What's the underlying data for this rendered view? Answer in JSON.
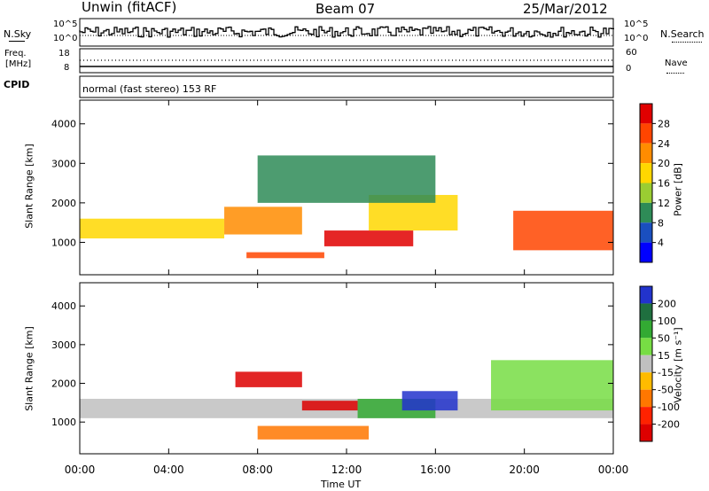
{
  "header": {
    "station": "Unwin (fitACF)",
    "beam": "Beam 07",
    "date": "25/Mar/2012"
  },
  "panels": {
    "nsky_label": "N.Sky",
    "nsearch_label": "N.Search",
    "freq_label_1": "Freq.",
    "freq_label_2": "[MHz]",
    "nave_label": "Nave",
    "cpid_label": "CPID",
    "cpid_value": "normal (fast stereo) 153 RF",
    "noise_ticks_left": [
      "10^5",
      "10^0"
    ],
    "noise_ticks_right": [
      "10^5",
      "10^0"
    ],
    "freq_ticks": [
      "18",
      "8"
    ],
    "nave_ticks": [
      "60",
      "0"
    ]
  },
  "colorbars": {
    "power": {
      "label": "Power [dB]",
      "ticks": [
        "28",
        "24",
        "20",
        "16",
        "12",
        "8",
        "4"
      ],
      "colors": [
        "#e00000",
        "#ff4500",
        "#ff8c00",
        "#ffd700",
        "#9acd32",
        "#2e8b57",
        "#1a4fbf",
        "#0000ff"
      ]
    },
    "velocity": {
      "label": "Velocity [m s⁻¹]",
      "ticks": [
        "200",
        "100",
        "50",
        "15",
        "-15",
        "-50",
        "-100",
        "-200"
      ],
      "colors": [
        "#2233cc",
        "#1f6f3f",
        "#33aa33",
        "#77dd44",
        "#c0c0c0",
        "#ffbb00",
        "#ff7700",
        "#ff2200",
        "#dd0000"
      ]
    }
  },
  "chart_data": [
    {
      "type": "heatmap",
      "title": "Power",
      "ylabel": "Slant Range [km]",
      "xlabel": "Time UT",
      "ylim": [
        180,
        4600
      ],
      "yticks": [
        "1000",
        "2000",
        "3000",
        "4000"
      ],
      "x_ticks": [
        "00:00",
        "04:00",
        "08:00",
        "12:00",
        "16:00",
        "20:00",
        "00:00"
      ],
      "colorbar": "Power [dB]",
      "regions": [
        {
          "t0": 0.0,
          "t1": 6.5,
          "r0": 1100,
          "r1": 1600,
          "level": 16
        },
        {
          "t0": 6.5,
          "t1": 10.0,
          "r0": 1200,
          "r1": 1900,
          "level": 20
        },
        {
          "t0": 7.5,
          "t1": 11.0,
          "r0": 600,
          "r1": 750,
          "level": 24
        },
        {
          "t0": 11.0,
          "t1": 15.0,
          "r0": 900,
          "r1": 1300,
          "level": 28
        },
        {
          "t0": 13.0,
          "t1": 17.0,
          "r0": 1300,
          "r1": 2200,
          "level": 16
        },
        {
          "t0": 19.5,
          "t1": 24.0,
          "r0": 800,
          "r1": 1800,
          "level": 24
        },
        {
          "t0": 8.0,
          "t1": 16.0,
          "r0": 2000,
          "r1": 3200,
          "level": 8
        }
      ]
    },
    {
      "type": "heatmap",
      "title": "Velocity",
      "ylabel": "Slant Range [km]",
      "xlabel": "Time UT",
      "ylim": [
        180,
        4600
      ],
      "yticks": [
        "1000",
        "2000",
        "3000",
        "4000"
      ],
      "x_ticks": [
        "00:00",
        "04:00",
        "08:00",
        "12:00",
        "16:00",
        "20:00",
        "00:00"
      ],
      "colorbar": "Velocity [m s⁻¹]",
      "regions": [
        {
          "t0": 0.0,
          "t1": 24.0,
          "r0": 1100,
          "r1": 1600,
          "level": 0
        },
        {
          "t0": 7.0,
          "t1": 10.0,
          "r0": 1900,
          "r1": 2300,
          "level": -200
        },
        {
          "t0": 10.0,
          "t1": 12.5,
          "r0": 1300,
          "r1": 1550,
          "level": -200
        },
        {
          "t0": 8.0,
          "t1": 13.0,
          "r0": 550,
          "r1": 900,
          "level": -50
        },
        {
          "t0": 12.5,
          "t1": 16.0,
          "r0": 1100,
          "r1": 1600,
          "level": 50
        },
        {
          "t0": 14.5,
          "t1": 17.0,
          "r0": 1300,
          "r1": 1800,
          "level": 200
        },
        {
          "t0": 18.5,
          "t1": 24.0,
          "r0": 1300,
          "r1": 2600,
          "level": 15
        }
      ]
    }
  ]
}
